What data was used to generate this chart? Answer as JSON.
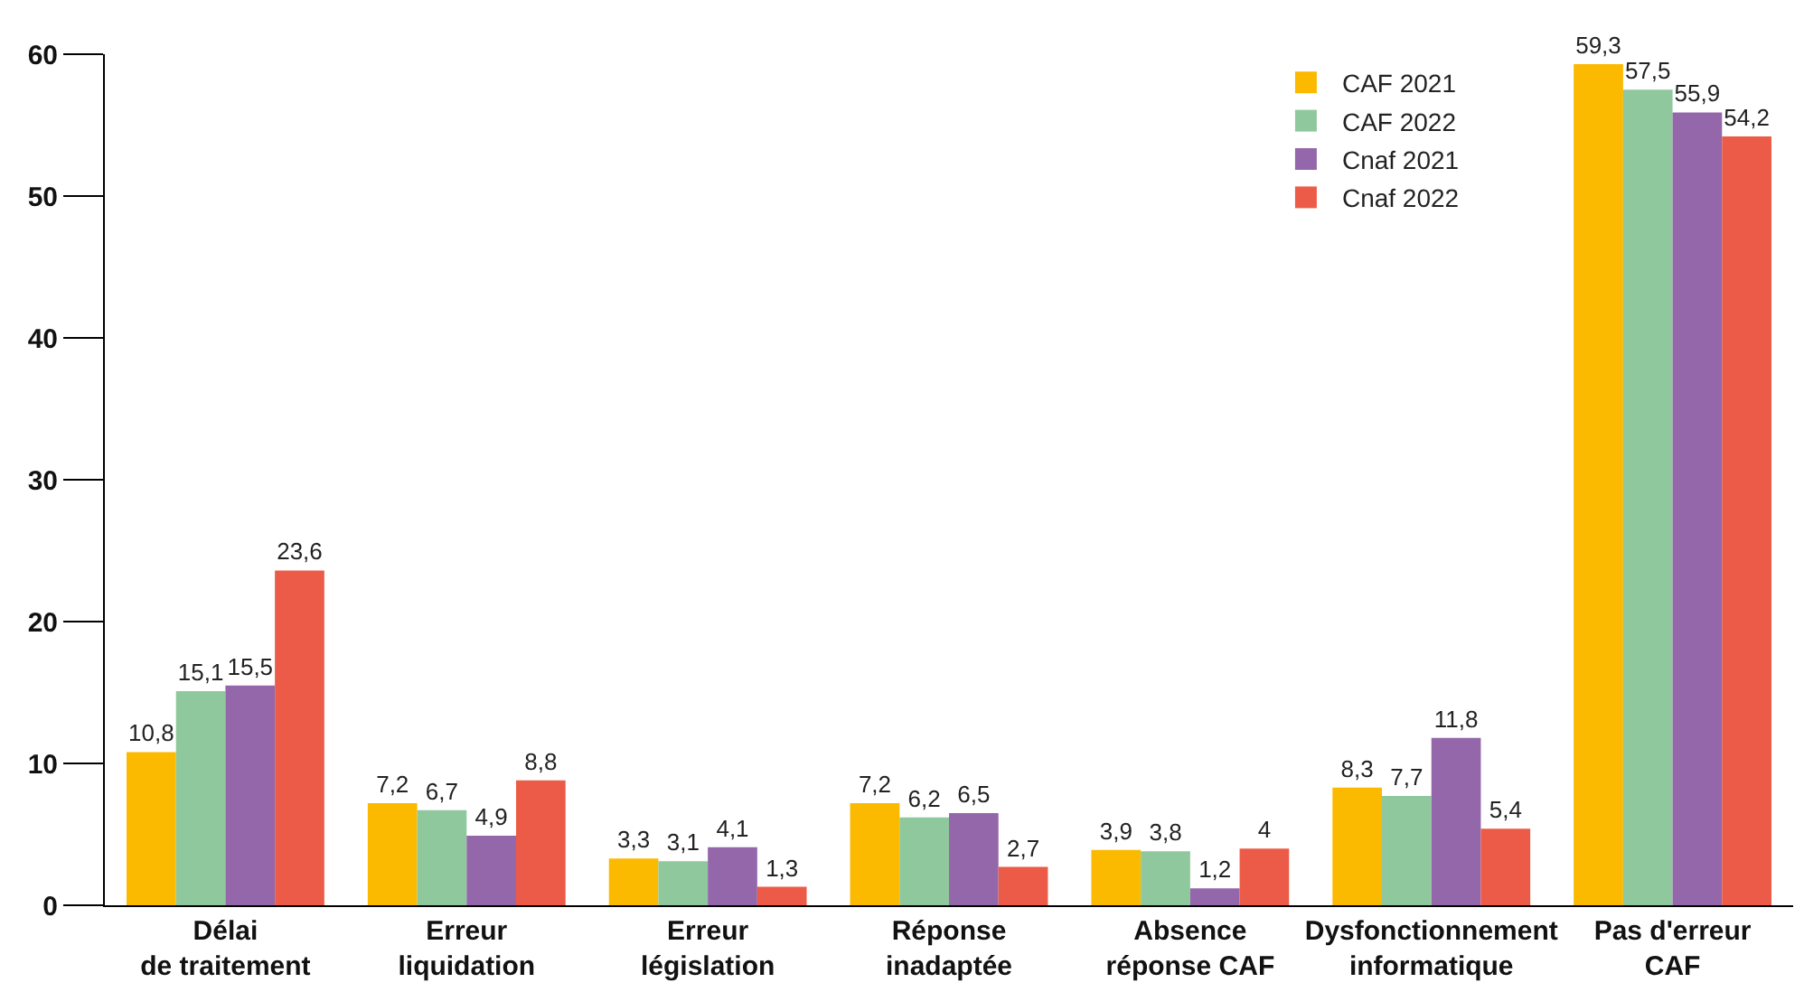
{
  "chart_data": {
    "type": "bar",
    "categories": [
      "Délai\nde traitement",
      "Erreur\nliquidation",
      "Erreur\nlégislation",
      "Réponse\ninadaptée",
      "Absence\nréponse CAF",
      "Dysfonctionnement\ninformatique",
      "Pas d'erreur\nCAF"
    ],
    "series": [
      {
        "name": "CAF 2021",
        "color": "#fbb900",
        "values": [
          10.8,
          7.2,
          3.3,
          7.2,
          3.9,
          8.3,
          59.3
        ],
        "value_labels": [
          "10,8",
          "7,2",
          "3,3",
          "7,2",
          "3,9",
          "8,3",
          "59,3"
        ]
      },
      {
        "name": "CAF 2022",
        "color": "#8fc89d",
        "values": [
          15.1,
          6.7,
          3.1,
          6.2,
          3.8,
          7.7,
          57.5
        ],
        "value_labels": [
          "15,1",
          "6,7",
          "3,1",
          "6,2",
          "3,8",
          "7,7",
          "57,5"
        ]
      },
      {
        "name": "Cnaf 2021",
        "color": "#9467aa",
        "values": [
          15.5,
          4.9,
          4.1,
          6.5,
          1.2,
          11.8,
          55.9
        ],
        "value_labels": [
          "15,5",
          "4,9",
          "4,1",
          "6,5",
          "1,2",
          "11,8",
          "55,9"
        ]
      },
      {
        "name": "Cnaf 2022",
        "color": "#ec5b47",
        "values": [
          23.6,
          8.8,
          1.3,
          2.7,
          4,
          5.4,
          54.2
        ],
        "value_labels": [
          "23,6",
          "8,8",
          "1,3",
          "2,7",
          "4",
          "5,4",
          "54,2"
        ]
      }
    ],
    "ylim": [
      0,
      60
    ],
    "yticks": [
      0,
      10,
      20,
      30,
      40,
      50,
      60
    ],
    "grid": false,
    "legend": "top right"
  }
}
